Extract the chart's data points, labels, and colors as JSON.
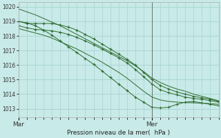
{
  "bg_color": "#c8eae8",
  "grid_color": "#9ecfcb",
  "line_color": "#2d6a2d",
  "xlabel": "Pression niveau de la mer(  hPa )",
  "xtick_labels": [
    "Mar",
    "Mer"
  ],
  "ylim": [
    1012.4,
    1020.3
  ],
  "yticks": [
    1013,
    1014,
    1015,
    1016,
    1017,
    1018,
    1019,
    1020
  ],
  "xlim": [
    0,
    48
  ],
  "vline_x": 32,
  "mar_x": 0,
  "mer_x": 32,
  "series": [
    {
      "x": [
        0,
        2,
        4,
        6,
        8,
        10,
        12,
        14,
        16,
        18,
        20,
        22,
        24,
        26,
        28,
        30,
        32,
        34,
        36,
        38,
        40,
        42,
        44,
        46,
        48
      ],
      "y": [
        1019.85,
        1019.65,
        1019.45,
        1019.2,
        1018.95,
        1018.7,
        1018.4,
        1018.1,
        1017.8,
        1017.5,
        1017.2,
        1016.9,
        1016.6,
        1016.3,
        1015.95,
        1015.55,
        1015.1,
        1014.8,
        1014.55,
        1014.35,
        1014.2,
        1014.0,
        1013.85,
        1013.7,
        1013.55
      ],
      "marker": false
    },
    {
      "x": [
        0,
        2,
        4,
        6,
        8,
        10,
        12,
        14,
        16,
        18,
        20,
        22,
        24,
        26,
        28,
        30,
        32,
        34,
        36,
        38,
        40,
        42,
        44,
        46,
        48
      ],
      "y": [
        1019.0,
        1018.85,
        1018.85,
        1018.85,
        1018.85,
        1018.75,
        1018.6,
        1018.4,
        1018.1,
        1017.8,
        1017.45,
        1017.1,
        1016.75,
        1016.4,
        1016.0,
        1015.5,
        1015.0,
        1014.6,
        1014.35,
        1014.15,
        1014.0,
        1013.85,
        1013.75,
        1013.65,
        1013.5
      ],
      "marker": true
    },
    {
      "x": [
        0,
        2,
        4,
        6,
        8,
        10,
        12,
        14,
        16,
        18,
        20,
        22,
        24,
        26,
        28,
        30,
        32,
        34,
        36,
        38,
        40,
        42,
        44,
        46,
        48
      ],
      "y": [
        1018.7,
        1018.55,
        1018.45,
        1018.4,
        1018.35,
        1018.25,
        1018.1,
        1017.9,
        1017.65,
        1017.4,
        1017.1,
        1016.8,
        1016.5,
        1016.15,
        1015.7,
        1015.2,
        1014.7,
        1014.3,
        1014.1,
        1013.95,
        1013.8,
        1013.7,
        1013.65,
        1013.55,
        1013.45
      ],
      "marker": true
    },
    {
      "x": [
        0,
        2,
        4,
        6,
        8,
        10,
        12,
        14,
        16,
        18,
        20,
        22,
        24,
        26,
        28,
        30,
        32,
        34,
        36,
        38,
        40,
        42,
        44,
        46,
        48
      ],
      "y": [
        1018.5,
        1018.35,
        1018.2,
        1018.05,
        1017.85,
        1017.6,
        1017.35,
        1017.1,
        1016.8,
        1016.5,
        1016.2,
        1015.85,
        1015.5,
        1015.1,
        1014.65,
        1014.2,
        1013.8,
        1013.6,
        1013.5,
        1013.45,
        1013.42,
        1013.4,
        1013.38,
        1013.35,
        1013.3
      ],
      "marker": false
    },
    {
      "x": [
        0,
        2,
        4,
        6,
        8,
        10,
        12,
        14,
        16,
        18,
        20,
        22,
        24,
        26,
        28,
        30,
        32,
        34,
        36,
        38,
        40,
        42,
        44,
        46,
        48
      ],
      "y": [
        1019.0,
        1018.9,
        1018.7,
        1018.4,
        1018.05,
        1017.65,
        1017.25,
        1016.85,
        1016.45,
        1016.05,
        1015.6,
        1015.15,
        1014.7,
        1014.25,
        1013.8,
        1013.45,
        1013.1,
        1013.05,
        1013.1,
        1013.3,
        1013.45,
        1013.5,
        1013.4,
        1013.3,
        1013.2
      ],
      "marker": true
    }
  ],
  "figsize": [
    3.2,
    2.0
  ],
  "dpi": 100
}
